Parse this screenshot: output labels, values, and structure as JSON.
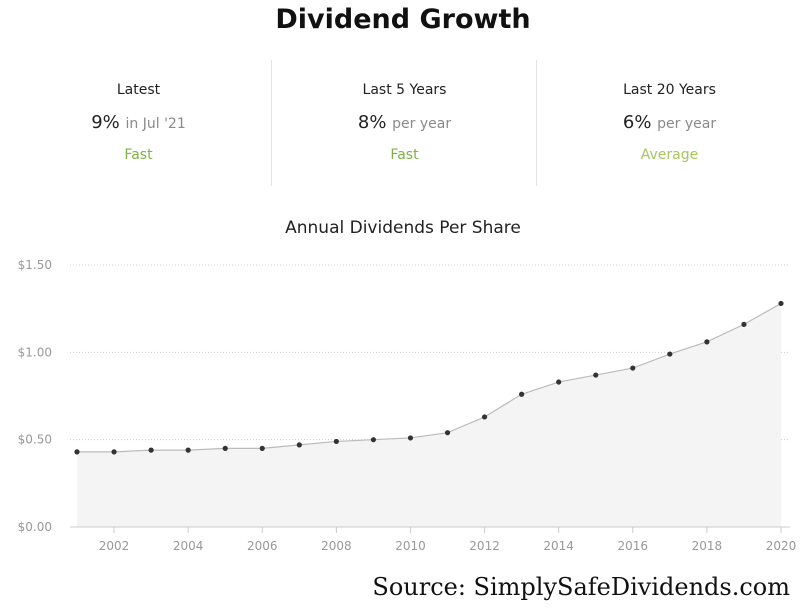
{
  "title": "Dividend Growth",
  "stats": [
    {
      "label": "Latest",
      "value": "9%",
      "unit": "in Jul '21",
      "rating": "Fast",
      "rating_color": "#7cb342"
    },
    {
      "label": "Last 5 Years",
      "value": "8%",
      "unit": "per year",
      "rating": "Fast",
      "rating_color": "#7cb342"
    },
    {
      "label": "Last 20 Years",
      "value": "6%",
      "unit": "per year",
      "rating": "Average",
      "rating_color": "#a4c55f"
    }
  ],
  "source": "Source: SimplySafeDividends.com",
  "chart_data": {
    "type": "area",
    "title": "Annual Dividends Per Share",
    "x": [
      2001,
      2002,
      2003,
      2004,
      2005,
      2006,
      2007,
      2008,
      2009,
      2010,
      2011,
      2012,
      2013,
      2014,
      2015,
      2016,
      2017,
      2018,
      2019,
      2020
    ],
    "series": [
      {
        "values": [
          0.43,
          0.43,
          0.44,
          0.44,
          0.45,
          0.45,
          0.47,
          0.49,
          0.5,
          0.51,
          0.54,
          0.63,
          0.76,
          0.83,
          0.87,
          0.91,
          0.99,
          1.06,
          1.16,
          1.28
        ]
      }
    ],
    "x_ticks": [
      2002,
      2004,
      2006,
      2008,
      2010,
      2012,
      2014,
      2016,
      2018,
      2020
    ],
    "y_ticks": [
      0,
      0.5,
      1.0,
      1.5
    ],
    "y_tick_labels": [
      "$0.00",
      "$0.50",
      "$1.00",
      "$1.50"
    ],
    "ylim": [
      0,
      1.5
    ],
    "grid": true,
    "colors": {
      "line": "#bbbbbb",
      "fill": "#f4f4f4",
      "marker": "#333333",
      "grid": "#cccccc",
      "tick_text": "#999999"
    }
  }
}
